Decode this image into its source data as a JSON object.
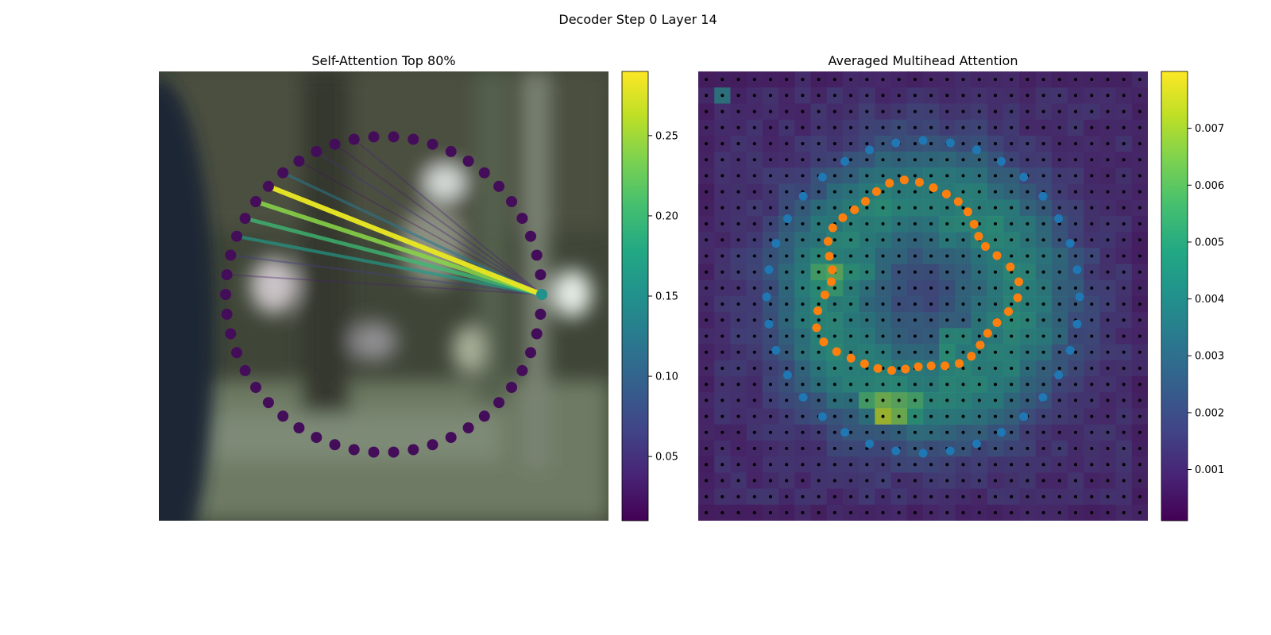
{
  "figure": {
    "suptitle": "Decoder Step 0 Layer 14"
  },
  "chart_data": [
    {
      "type": "scatter",
      "title": "Self-Attention Top 80%",
      "colormap": "viridis",
      "colorbar": {
        "min": 0.01,
        "max": 0.29,
        "ticks": [
          "0.05",
          "0.10",
          "0.15",
          "0.20",
          "0.25"
        ],
        "tick_values": [
          0.05,
          0.1,
          0.15,
          0.2,
          0.25
        ]
      },
      "point_count": 50,
      "query_point": 0,
      "edges": [
        {
          "to": 19,
          "weight": 0.28
        },
        {
          "to": 20,
          "weight": 0.24
        },
        {
          "to": 21,
          "weight": 0.2
        },
        {
          "to": 22,
          "weight": 0.16
        },
        {
          "to": 18,
          "weight": 0.12
        },
        {
          "to": 23,
          "weight": 0.06
        },
        {
          "to": 16,
          "weight": 0.05
        },
        {
          "to": 14,
          "weight": 0.04
        },
        {
          "to": 24,
          "weight": 0.035
        },
        {
          "to": 15,
          "weight": 0.03
        },
        {
          "to": 17,
          "weight": 0.025
        }
      ],
      "point_color": "#440d59",
      "query_color": "#21918c",
      "background": "blurred photograph"
    },
    {
      "type": "heatmap",
      "title": "Averaged Multihead Attention",
      "colormap": "viridis",
      "colorbar": {
        "min": 0.0001,
        "max": 0.008,
        "ticks": [
          "0.001",
          "0.002",
          "0.003",
          "0.004",
          "0.005",
          "0.006",
          "0.007"
        ],
        "tick_values": [
          0.001,
          0.002,
          0.003,
          0.004,
          0.005,
          0.006,
          0.007
        ]
      },
      "grid_size": 28,
      "outer_ring": {
        "count": 36,
        "color": "#1f77b4"
      },
      "inner_ring": {
        "count": 42,
        "color": "#ff7f0e"
      },
      "grid_points_color": "#000000"
    }
  ]
}
